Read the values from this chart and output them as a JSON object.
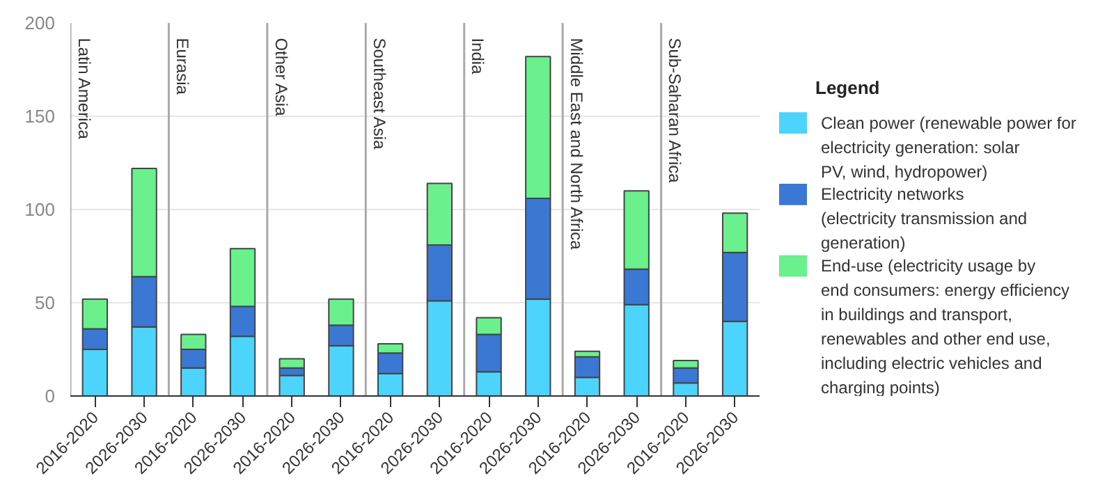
{
  "chart_data": {
    "type": "bar",
    "stacked": true,
    "legend": "right",
    "legend_title": "Legend",
    "grid": "y",
    "categories": [
      "2016-2020",
      "2026-2030",
      "2016-2020",
      "2026-2030",
      "2016-2020",
      "2026-2030",
      "2016-2020",
      "2026-2030",
      "2016-2020",
      "2026-2030",
      "2016-2020",
      "2026-2030",
      "2016-2020",
      "2026-2030"
    ],
    "annotations": [
      "Latin America",
      "Eurasia",
      "Other Asia",
      "Southeast Asia",
      "India",
      "Middle East and North Africa",
      "Sub-Saharan Africa"
    ],
    "ylim": [
      0,
      200
    ],
    "yticks": [
      0,
      50,
      100,
      150,
      200
    ],
    "series": [
      {
        "name": "Clean power (renewable power for electricity generation: solar PV, wind, hydropower)",
        "color": "#4dd4fc",
        "values": [
          25,
          37,
          15,
          32,
          11,
          27,
          12,
          51,
          13,
          52,
          10,
          49,
          7,
          40
        ]
      },
      {
        "name": "Electricity networks (electricity transmission and generation)",
        "color": "#3a78d4",
        "values": [
          11,
          27,
          10,
          16,
          4,
          11,
          11,
          30,
          20,
          54,
          11,
          19,
          8,
          37
        ]
      },
      {
        "name": "End-use (electricity usage by end consumers: energy efficiency in buildings and transport, renewables and other end use, including electric vehicles and charging points)",
        "color": "#6af08c",
        "values": [
          16,
          58,
          8,
          31,
          5,
          14,
          5,
          33,
          9,
          76,
          3,
          42,
          4,
          21
        ]
      }
    ]
  }
}
